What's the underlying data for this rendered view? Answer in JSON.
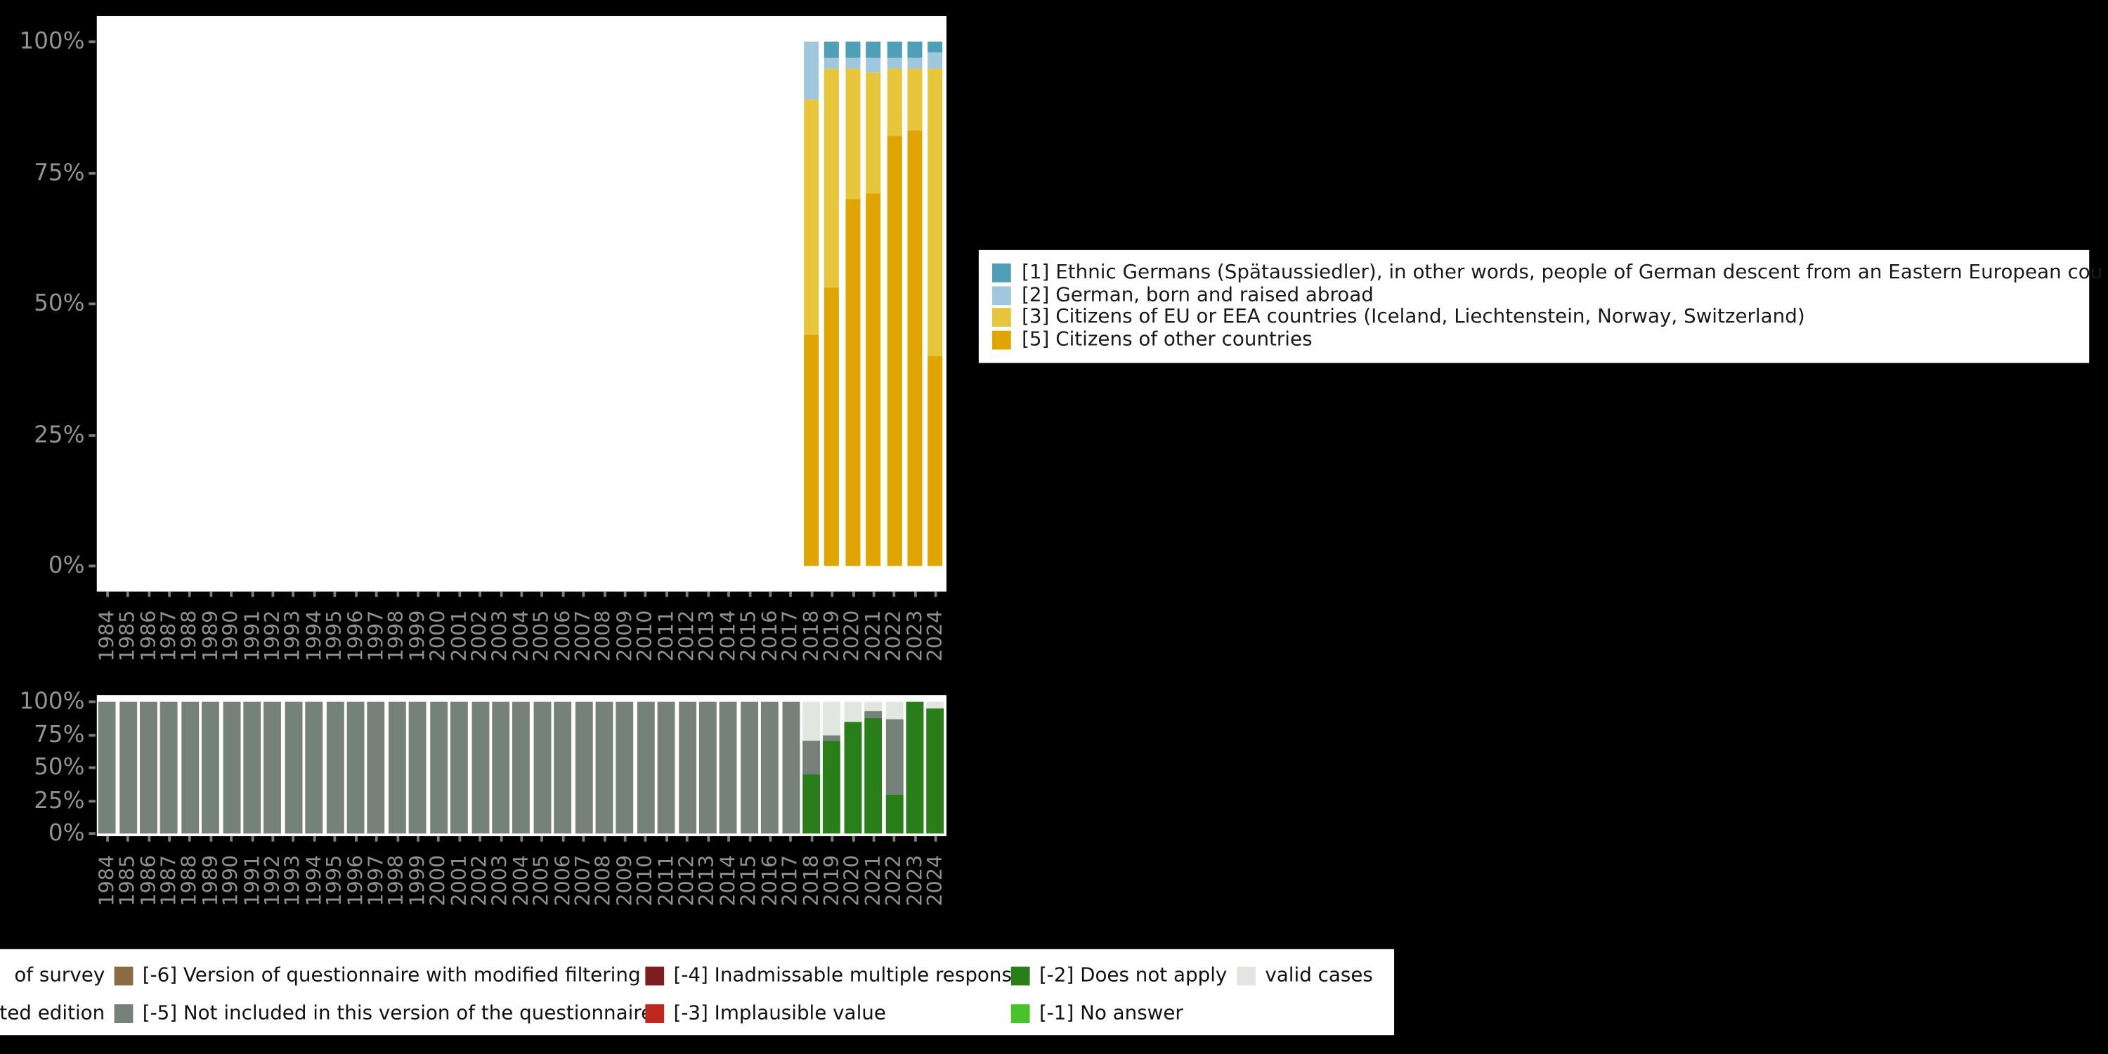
{
  "app": {
    "background": "#000000"
  },
  "chart_data": [
    {
      "id": "citizenship",
      "type": "bar",
      "stacked": true,
      "title": "",
      "xlabel": "",
      "ylabel": "",
      "ylim": [
        0,
        100
      ],
      "grid": false,
      "legend_position": "right",
      "tick_percents": [
        100,
        75,
        50,
        25,
        0
      ],
      "ytick_labels": [
        "100%",
        "75%",
        "50%",
        "25%",
        "0%"
      ],
      "categories": [
        "1984",
        "1985",
        "1986",
        "1987",
        "1988",
        "1989",
        "1990",
        "1991",
        "1992",
        "1993",
        "1994",
        "1995",
        "1996",
        "1997",
        "1998",
        "1999",
        "2000",
        "2001",
        "2002",
        "2003",
        "2004",
        "2005",
        "2006",
        "2007",
        "2008",
        "2009",
        "2010",
        "2011",
        "2012",
        "2013",
        "2014",
        "2015",
        "2016",
        "2017",
        "2018",
        "2019",
        "2020",
        "2021",
        "2022",
        "2023",
        "2024"
      ],
      "series": [
        {
          "name": "[5] Citizens of other countries",
          "color": "#e0a500",
          "values": [
            0,
            0,
            0,
            0,
            0,
            0,
            0,
            0,
            0,
            0,
            0,
            0,
            0,
            0,
            0,
            0,
            0,
            0,
            0,
            0,
            0,
            0,
            0,
            0,
            0,
            0,
            0,
            0,
            0,
            0,
            0,
            0,
            0,
            0,
            44,
            53,
            70,
            71,
            82,
            83,
            40
          ]
        },
        {
          "name": "[3] Citizens of EU or EEA countries (Iceland, Liechtenstein, Norway, Switzerland)",
          "color": "#e7c63c",
          "values": [
            0,
            0,
            0,
            0,
            0,
            0,
            0,
            0,
            0,
            0,
            0,
            0,
            0,
            0,
            0,
            0,
            0,
            0,
            0,
            0,
            0,
            0,
            0,
            0,
            0,
            0,
            0,
            0,
            0,
            0,
            0,
            0,
            0,
            0,
            45,
            42,
            25,
            23,
            13,
            12,
            55
          ]
        },
        {
          "name": "[2] German, born and raised abroad",
          "color": "#9fc8dc",
          "values": [
            0,
            0,
            0,
            0,
            0,
            0,
            0,
            0,
            0,
            0,
            0,
            0,
            0,
            0,
            0,
            0,
            0,
            0,
            0,
            0,
            0,
            0,
            0,
            0,
            0,
            0,
            0,
            0,
            0,
            0,
            0,
            0,
            0,
            0,
            11,
            2,
            2,
            3,
            2,
            2,
            3
          ]
        },
        {
          "name": "[1] Ethnic Germans (Spätaussiedler), in other words, people of German descent from an Eastern European cou",
          "color": "#4f9fb8",
          "values": [
            0,
            0,
            0,
            0,
            0,
            0,
            0,
            0,
            0,
            0,
            0,
            0,
            0,
            0,
            0,
            0,
            0,
            0,
            0,
            0,
            0,
            0,
            0,
            0,
            0,
            0,
            0,
            0,
            0,
            0,
            0,
            0,
            0,
            0,
            0,
            3,
            3,
            3,
            3,
            3,
            2
          ]
        }
      ]
    },
    {
      "id": "missing-values",
      "type": "bar",
      "stacked": true,
      "title": "",
      "xlabel": "",
      "ylabel": "",
      "ylim": [
        0,
        100
      ],
      "grid": false,
      "legend_position": "bottom",
      "tick_percents": [
        100,
        75,
        50,
        25,
        0
      ],
      "ytick_labels": [
        "100%",
        "75%",
        "50%",
        "25%",
        "0%"
      ],
      "categories": [
        "1984",
        "1985",
        "1986",
        "1987",
        "1988",
        "1989",
        "1990",
        "1991",
        "1992",
        "1993",
        "1994",
        "1995",
        "1996",
        "1997",
        "1998",
        "1999",
        "2000",
        "2001",
        "2002",
        "2003",
        "2004",
        "2005",
        "2006",
        "2007",
        "2008",
        "2009",
        "2010",
        "2011",
        "2012",
        "2013",
        "2014",
        "2015",
        "2016",
        "2017",
        "2018",
        "2019",
        "2020",
        "2021",
        "2022",
        "2023",
        "2024"
      ],
      "series": [
        {
          "name": "[-2] Does not apply",
          "color": "#2a7e19",
          "values": [
            0,
            0,
            0,
            0,
            0,
            0,
            0,
            0,
            0,
            0,
            0,
            0,
            0,
            0,
            0,
            0,
            0,
            0,
            0,
            0,
            0,
            0,
            0,
            0,
            0,
            0,
            0,
            0,
            0,
            0,
            0,
            0,
            0,
            0,
            45,
            70,
            85,
            88,
            30,
            100,
            95
          ]
        },
        {
          "name": "[-5] Not included in this version of the questionnaire",
          "color": "#75817a",
          "values": [
            100,
            100,
            100,
            100,
            100,
            100,
            100,
            100,
            100,
            100,
            100,
            100,
            100,
            100,
            100,
            100,
            100,
            100,
            100,
            100,
            100,
            100,
            100,
            100,
            100,
            100,
            100,
            100,
            100,
            100,
            100,
            100,
            100,
            100,
            25,
            5,
            0,
            5,
            57,
            0,
            0
          ]
        },
        {
          "name": "valid cases",
          "color": "#e2e6e1",
          "values": [
            0,
            0,
            0,
            0,
            0,
            0,
            0,
            0,
            0,
            0,
            0,
            0,
            0,
            0,
            0,
            0,
            0,
            0,
            0,
            0,
            0,
            0,
            0,
            0,
            0,
            0,
            0,
            0,
            0,
            0,
            0,
            0,
            0,
            0,
            30,
            25,
            15,
            7,
            13,
            0,
            5
          ]
        }
      ]
    }
  ],
  "legend_main": {
    "items": [
      {
        "label": "[1] Ethnic Germans (Spätaussiedler), in other words, people of German descent from an Eastern European cou",
        "color": "#4f9fb8"
      },
      {
        "label": "[2] German, born and raised abroad",
        "color": "#9fc8dc"
      },
      {
        "label": "[3] Citizens of EU or EEA countries (Iceland, Liechtenstein, Norway, Switzerland)",
        "color": "#e7c63c"
      },
      {
        "label": "[5] Citizens of other countries",
        "color": "#e0a500"
      }
    ]
  },
  "legend_missing": {
    "rows": [
      [
        {
          "col": 0,
          "label": "of survey",
          "color": null,
          "truncated": true
        },
        {
          "col": 1,
          "label": "[-6] Version of questionnaire with modified filtering",
          "color": "#8b6c42"
        },
        {
          "col": 2,
          "label": "[-4] Inadmissable multiple response",
          "color": "#7c1e1e"
        },
        {
          "col": 3,
          "label": "[-2] Does not apply",
          "color": "#2a7e19"
        },
        {
          "col": 4,
          "label": "valid cases",
          "color": "#e2e6e1"
        }
      ],
      [
        {
          "col": 0,
          "label": "cted edition",
          "color": null,
          "truncated": true
        },
        {
          "col": 1,
          "label": "[-5] Not included in this version of the questionnaire",
          "color": "#75817a"
        },
        {
          "col": 2,
          "label": "[-3] Implausible value",
          "color": "#c0281e"
        },
        {
          "col": 3,
          "label": "[-1] No answer",
          "color": "#49c32a"
        }
      ]
    ]
  }
}
